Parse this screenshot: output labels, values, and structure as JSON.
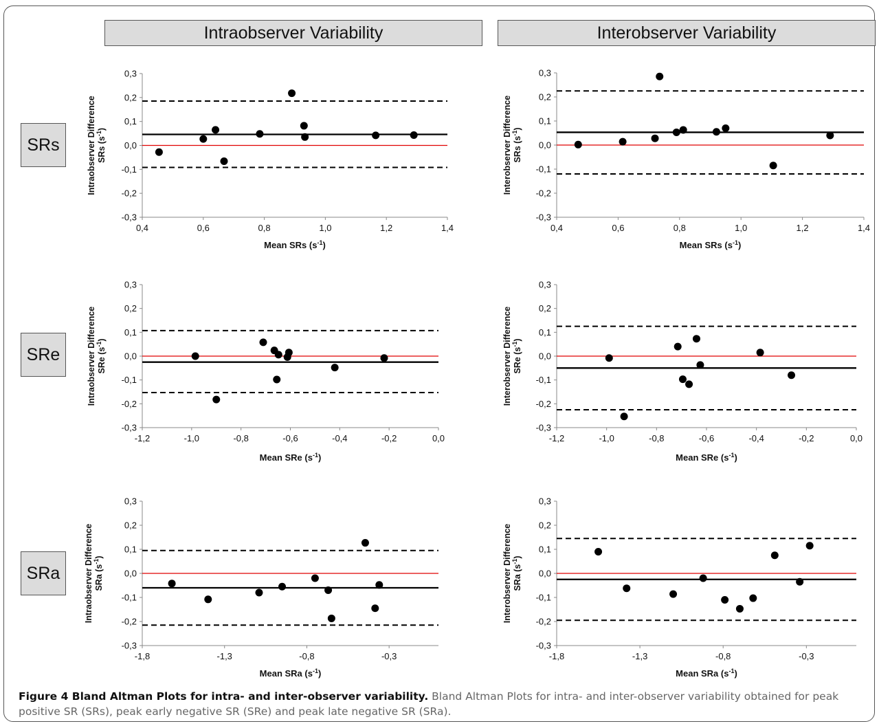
{
  "headers": {
    "intra": "Intraobserver Variability",
    "inter": "Interobserver Variability"
  },
  "row_labels": [
    "SRs",
    "SRe",
    "SRa"
  ],
  "colors": {
    "mean_line": "#000000",
    "zero_line": "#e00000",
    "points": "#000000",
    "header_bg": "#dcdcdc"
  },
  "caption": {
    "title": "Figure 4 Bland Altman Plots for intra- and inter-observer variability.",
    "text": " Bland Altman Plots for intra- and inter-observer variability obtained for peak positive SR (SRs), peak early negative SR (SRe) and peak late negative SR (SRa)."
  },
  "chart_data": [
    {
      "type": "scatter",
      "id": "intra-srs",
      "ylabel_line1": "Intraobserver Difference",
      "ylabel_line2": "SRs (s",
      "xlabel": "Mean SRs (s",
      "xlim": [
        0.4,
        1.4
      ],
      "ylim": [
        -0.3,
        0.3
      ],
      "xticks": [
        "0,4",
        "0,6",
        "0,8",
        "1,0",
        "1,2",
        "1,4"
      ],
      "yticks": [
        "0,3",
        "0,2",
        "0,1",
        "0,0",
        "-0,1",
        "-0,2",
        "-0,3"
      ],
      "mean": 0.046,
      "upper_loa": 0.185,
      "lower_loa": -0.092,
      "points": [
        [
          0.455,
          -0.028
        ],
        [
          0.6,
          0.027
        ],
        [
          0.64,
          0.065
        ],
        [
          0.668,
          -0.066
        ],
        [
          0.785,
          0.048
        ],
        [
          0.89,
          0.218
        ],
        [
          0.93,
          0.082
        ],
        [
          0.933,
          0.035
        ],
        [
          1.165,
          0.042
        ],
        [
          1.29,
          0.043
        ]
      ]
    },
    {
      "type": "scatter",
      "id": "inter-srs",
      "ylabel_line1": "Interobserver Difference",
      "ylabel_line2": "SRs (s",
      "xlabel": "Mean SRs (s",
      "xlim": [
        0.4,
        1.4
      ],
      "ylim": [
        -0.3,
        0.3
      ],
      "xticks": [
        "0,4",
        "0,6",
        "0,8",
        "1,0",
        "1,2",
        "1,4"
      ],
      "yticks": [
        "0,3",
        "0,2",
        "0,1",
        "0,0",
        "-0,1",
        "-0,2",
        "-0,3"
      ],
      "mean": 0.053,
      "upper_loa": 0.225,
      "lower_loa": -0.12,
      "points": [
        [
          0.47,
          0.002
        ],
        [
          0.615,
          0.014
        ],
        [
          0.72,
          0.028
        ],
        [
          0.735,
          0.285
        ],
        [
          0.79,
          0.053
        ],
        [
          0.812,
          0.063
        ],
        [
          0.92,
          0.055
        ],
        [
          0.95,
          0.07
        ],
        [
          1.105,
          -0.085
        ],
        [
          1.29,
          0.04
        ]
      ]
    },
    {
      "type": "scatter",
      "id": "intra-sre",
      "ylabel_line1": "Intraobserver Difference",
      "ylabel_line2": "SRe (s",
      "xlabel": "Mean SRe (s",
      "xlim": [
        -1.2,
        0.0
      ],
      "ylim": [
        -0.3,
        0.3
      ],
      "xticks": [
        "-1,2",
        "-1,0",
        "-0,8",
        "-0,6",
        "-0,4",
        "-0,2",
        "0,0"
      ],
      "yticks": [
        "0,3",
        "0,2",
        "0,1",
        "0,0",
        "-0,1",
        "-0,2",
        "-0,3"
      ],
      "mean": -0.025,
      "upper_loa": 0.107,
      "lower_loa": -0.153,
      "points": [
        [
          -0.985,
          0.0
        ],
        [
          -0.9,
          -0.182
        ],
        [
          -0.71,
          0.058
        ],
        [
          -0.665,
          0.024
        ],
        [
          -0.655,
          -0.098
        ],
        [
          -0.648,
          0.006
        ],
        [
          -0.612,
          -0.004
        ],
        [
          -0.606,
          0.015
        ],
        [
          -0.42,
          -0.048
        ],
        [
          -0.22,
          -0.008
        ]
      ]
    },
    {
      "type": "scatter",
      "id": "inter-sre",
      "ylabel_line1": "Interobserver Difference",
      "ylabel_line2": "SRe (s",
      "xlabel": "Mean SRe (s",
      "xlim": [
        -1.2,
        0.0
      ],
      "ylim": [
        -0.3,
        0.3
      ],
      "xticks": [
        "-1,2",
        "-1,0",
        "-0,8",
        "-0,6",
        "-0,4",
        "-0,2",
        "0,0"
      ],
      "yticks": [
        "0,3",
        "0,2",
        "0,1",
        "0,0",
        "-0,1",
        "-0,2",
        "-0,3"
      ],
      "mean": -0.05,
      "upper_loa": 0.125,
      "lower_loa": -0.225,
      "points": [
        [
          -0.99,
          -0.008
        ],
        [
          -0.93,
          -0.253
        ],
        [
          -0.715,
          0.04
        ],
        [
          -0.695,
          -0.097
        ],
        [
          -0.67,
          -0.118
        ],
        [
          -0.64,
          0.073
        ],
        [
          -0.625,
          -0.037
        ],
        [
          -0.385,
          0.015
        ],
        [
          -0.26,
          -0.08
        ]
      ]
    },
    {
      "type": "scatter",
      "id": "intra-sra",
      "ylabel_line1": "Intraobserver Difference",
      "ylabel_line2": "SRa (s",
      "xlabel": "Mean SRa (s",
      "xlim": [
        -1.8,
        0.0
      ],
      "ylim": [
        -0.3,
        0.3
      ],
      "xticks": [
        "-1,8",
        "-1,3",
        "-0,8",
        "-0,3"
      ],
      "xtick_values": [
        -1.8,
        -1.3,
        -0.8,
        -0.3
      ],
      "yticks": [
        "0,3",
        "0,2",
        "0,1",
        "0,0",
        "-0,1",
        "-0,2",
        "-0,3"
      ],
      "mean": -0.06,
      "upper_loa": 0.095,
      "lower_loa": -0.215,
      "points": [
        [
          -1.62,
          -0.042
        ],
        [
          -1.4,
          -0.108
        ],
        [
          -1.09,
          -0.08
        ],
        [
          -0.95,
          -0.055
        ],
        [
          -0.75,
          -0.02
        ],
        [
          -0.67,
          -0.07
        ],
        [
          -0.65,
          -0.187
        ],
        [
          -0.445,
          0.127
        ],
        [
          -0.385,
          -0.145
        ],
        [
          -0.36,
          -0.048
        ]
      ]
    },
    {
      "type": "scatter",
      "id": "inter-sra",
      "ylabel_line1": "Interobserver Difference",
      "ylabel_line2": "SRa (s",
      "xlabel": "Mean SRa (s",
      "xlim": [
        -1.8,
        0.0
      ],
      "ylim": [
        -0.3,
        0.3
      ],
      "xticks": [
        "-1,8",
        "-1,3",
        "-0,8",
        "-0,3"
      ],
      "xtick_values": [
        -1.8,
        -1.3,
        -0.8,
        -0.3
      ],
      "yticks": [
        "0,3",
        "0,2",
        "0,1",
        "0,0",
        "-0,1",
        "-0,2",
        "-0,3"
      ],
      "mean": -0.025,
      "upper_loa": 0.145,
      "lower_loa": -0.195,
      "points": [
        [
          -1.55,
          0.09
        ],
        [
          -1.38,
          -0.062
        ],
        [
          -1.1,
          -0.086
        ],
        [
          -0.92,
          -0.02
        ],
        [
          -0.79,
          -0.11
        ],
        [
          -0.7,
          -0.147
        ],
        [
          -0.62,
          -0.103
        ],
        [
          -0.49,
          0.075
        ],
        [
          -0.34,
          -0.035
        ],
        [
          -0.28,
          0.115
        ]
      ]
    }
  ]
}
